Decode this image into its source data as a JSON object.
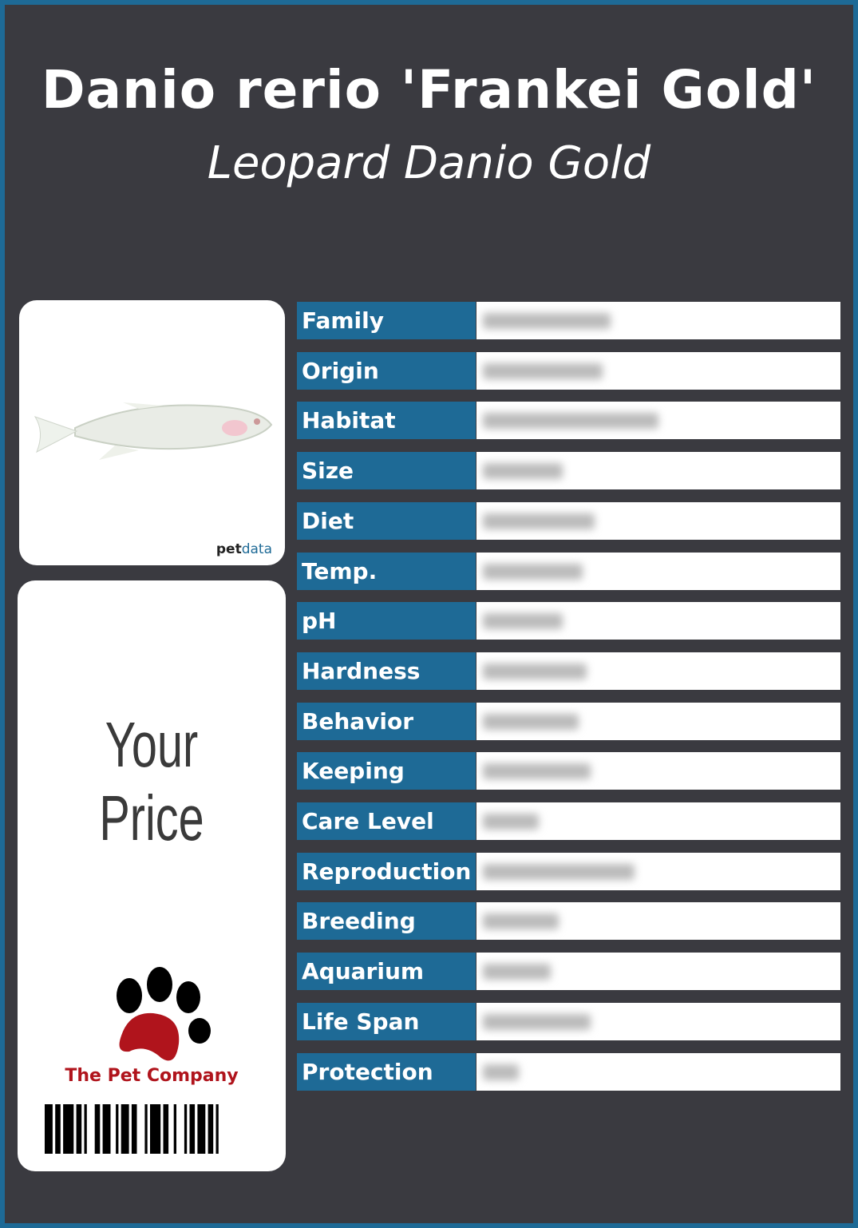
{
  "header": {
    "title": "Danio rerio 'Frankei Gold'",
    "subtitle": "Leopard Danio Gold"
  },
  "image_card": {
    "brand_prefix": "pet",
    "brand_suffix": "data"
  },
  "price_card": {
    "label": "Your Price",
    "company": "The Pet Company"
  },
  "table": {
    "rows": [
      "Family",
      "Origin",
      "Habitat",
      "Size",
      "Diet",
      "Temp.",
      "pH",
      "Hardness",
      "Behavior",
      "Keeping",
      "Care Level",
      "Reproduction",
      "Breeding",
      "Aquarium",
      "Life Span",
      "Protection"
    ]
  }
}
